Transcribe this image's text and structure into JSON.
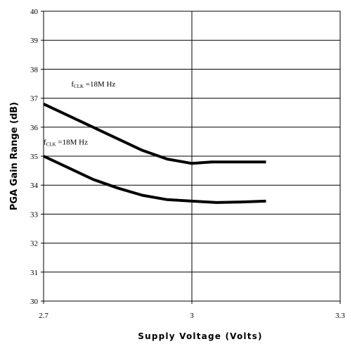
{
  "chart_data": {
    "type": "line",
    "title": "",
    "xlabel": "Supply Voltage (Volts)",
    "ylabel": "PGA Gain Range (dB)",
    "xlim": [
      2.7,
      3.3
    ],
    "ylim": [
      30,
      40
    ],
    "x_ticks": [
      "2.7",
      "3",
      "3.3"
    ],
    "x_tick_values": [
      2.7,
      3.0,
      3.3
    ],
    "y_ticks": [
      "30",
      "31",
      "32",
      "33",
      "34",
      "35",
      "36",
      "37",
      "38",
      "39",
      "40"
    ],
    "y_tick_values": [
      30,
      31,
      32,
      33,
      34,
      35,
      36,
      37,
      38,
      39,
      40
    ],
    "grid": true,
    "series": [
      {
        "x": [
          2.7,
          2.75,
          2.8,
          2.85,
          2.9,
          2.95,
          3.0,
          3.04,
          3.1,
          3.15
        ],
        "values": [
          36.8,
          36.4,
          36.0,
          35.6,
          35.2,
          34.9,
          34.75,
          34.8,
          34.8,
          34.8
        ],
        "color": "#000000"
      },
      {
        "x": [
          2.7,
          2.75,
          2.8,
          2.85,
          2.9,
          2.95,
          3.0,
          3.05,
          3.1,
          3.15
        ],
        "values": [
          35.0,
          34.6,
          34.2,
          33.9,
          33.65,
          33.5,
          33.45,
          33.4,
          33.42,
          33.45
        ],
        "color": "#000000"
      }
    ],
    "annotations": [
      {
        "prefix": "f",
        "sub": "CLK",
        "suffix": " =18M Hz",
        "anchor_x": 2.756,
        "anchor_y": 37.4
      },
      {
        "prefix": "f",
        "sub": "CLK",
        "suffix": " =18M Hz",
        "anchor_x": 2.7,
        "anchor_y": 35.4
      }
    ]
  }
}
